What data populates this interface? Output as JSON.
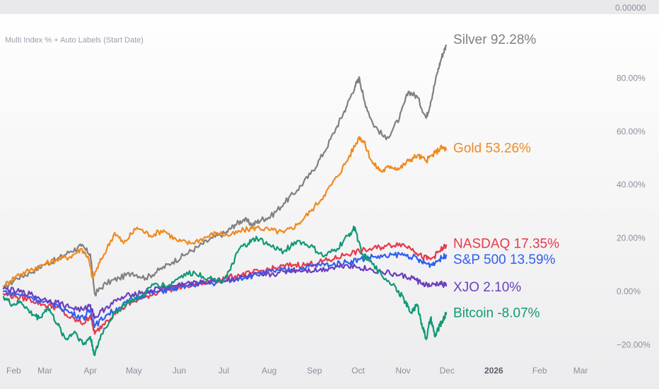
{
  "header": {
    "title": "Multi Index % + Auto Labels (Start Date)",
    "top_axis_label": "0.00000"
  },
  "chart_data": {
    "type": "line",
    "title": "Multi Index % + Auto Labels (Start Date)",
    "xlabel": "",
    "ylabel": "",
    "y_unit": "%",
    "ylim": [
      -26,
      104
    ],
    "y_ticks": [
      {
        "value": 80,
        "label": "80.00%"
      },
      {
        "value": 60,
        "label": "60.00%"
      },
      {
        "value": 40,
        "label": "40.00%"
      },
      {
        "value": 20,
        "label": "20.00%"
      },
      {
        "value": 0,
        "label": "0.00%"
      },
      {
        "value": -20,
        "label": "−20.00%"
      }
    ],
    "x_ticks": [
      {
        "value": 0.0,
        "label": "Feb",
        "bold": false
      },
      {
        "value": 0.93,
        "label": "Mar",
        "bold": false
      },
      {
        "value": 1.95,
        "label": "Apr",
        "bold": false
      },
      {
        "value": 2.93,
        "label": "May",
        "bold": false
      },
      {
        "value": 3.95,
        "label": "Jun",
        "bold": false
      },
      {
        "value": 4.95,
        "label": "Jul",
        "bold": false
      },
      {
        "value": 5.97,
        "label": "Aug",
        "bold": false
      },
      {
        "value": 6.99,
        "label": "Sep",
        "bold": false
      },
      {
        "value": 7.97,
        "label": "Oct",
        "bold": false
      },
      {
        "value": 8.98,
        "label": "Nov",
        "bold": false
      },
      {
        "value": 9.97,
        "label": "Dec",
        "bold": false
      },
      {
        "value": 11.02,
        "label": "2026",
        "bold": true
      },
      {
        "value": 12.05,
        "label": "Feb",
        "bold": false
      },
      {
        "value": 12.97,
        "label": "Mar",
        "bold": false
      }
    ],
    "x_range": [
      0,
      13.7
    ],
    "grid": false,
    "legend": "right-of-series-end",
    "series": [
      {
        "name": "Silver",
        "label": "Silver 92.28%",
        "color": "#808080",
        "x": [
          0,
          0.3,
          0.6,
          0.9,
          1.2,
          1.5,
          1.75,
          1.95,
          2.05,
          2.3,
          2.6,
          2.9,
          3.2,
          3.5,
          3.8,
          4.1,
          4.4,
          4.7,
          5.0,
          5.2,
          5.4,
          5.6,
          5.8,
          6.0,
          6.3,
          6.6,
          6.9,
          7.2,
          7.5,
          7.7,
          7.9,
          8.0,
          8.1,
          8.3,
          8.6,
          8.9,
          9.1,
          9.3,
          9.5,
          9.6,
          9.75,
          9.85,
          9.95
        ],
        "values": [
          1,
          5,
          7,
          10,
          12,
          15,
          17,
          14,
          -1,
          3,
          5,
          7,
          5,
          8,
          11,
          14,
          17,
          20,
          22,
          25,
          27,
          25,
          27,
          28,
          33,
          38,
          44,
          52,
          62,
          69,
          77,
          80,
          72,
          63,
          57,
          65,
          75,
          73,
          65,
          71,
          82,
          88,
          92.28
        ]
      },
      {
        "name": "Gold",
        "label": "Gold 53.26%",
        "color": "#f08a1e",
        "x": [
          0,
          0.3,
          0.6,
          0.9,
          1.2,
          1.5,
          1.75,
          1.9,
          2.0,
          2.2,
          2.5,
          2.7,
          3.0,
          3.3,
          3.6,
          3.9,
          4.2,
          4.5,
          4.8,
          5.1,
          5.4,
          5.7,
          6.0,
          6.3,
          6.6,
          6.9,
          7.2,
          7.5,
          7.75,
          8.0,
          8.1,
          8.3,
          8.5,
          8.7,
          8.9,
          9.1,
          9.3,
          9.5,
          9.7,
          9.85,
          9.95
        ],
        "values": [
          2,
          6,
          8,
          10,
          12,
          13,
          16,
          13,
          5,
          12,
          22,
          18,
          24,
          21,
          23,
          19,
          18,
          20,
          22,
          21,
          23,
          24,
          23,
          22,
          25,
          30,
          36,
          43,
          50,
          58,
          56,
          48,
          45,
          47,
          46,
          49,
          51,
          49,
          52,
          54,
          53.26
        ]
      },
      {
        "name": "NASDAQ",
        "label": "NASDAQ 17.35%",
        "color": "#e8394a",
        "x": [
          0,
          0.3,
          0.6,
          0.9,
          1.2,
          1.5,
          1.8,
          1.95,
          2.05,
          2.3,
          2.6,
          2.9,
          3.2,
          3.5,
          3.8,
          4.1,
          4.4,
          4.7,
          5.0,
          5.3,
          5.6,
          5.9,
          6.2,
          6.5,
          6.8,
          7.1,
          7.4,
          7.7,
          8.0,
          8.3,
          8.6,
          8.9,
          9.2,
          9.4,
          9.6,
          9.8,
          9.95
        ],
        "values": [
          -1,
          -2,
          -3,
          -5,
          -6,
          -10,
          -12,
          -9,
          -16,
          -11,
          -7,
          -4,
          -2,
          0,
          1,
          2,
          3,
          4,
          5,
          6,
          7,
          8,
          9,
          10,
          10,
          11,
          12,
          14,
          15,
          16,
          17,
          18,
          16,
          13,
          12,
          15,
          17.35
        ]
      },
      {
        "name": "S&P 500",
        "label": "S&P 500 13.59%",
        "color": "#2f5ff0",
        "x": [
          0,
          0.3,
          0.6,
          0.9,
          1.2,
          1.5,
          1.8,
          1.95,
          2.05,
          2.3,
          2.6,
          2.9,
          3.2,
          3.5,
          3.8,
          4.1,
          4.4,
          4.7,
          5.0,
          5.3,
          5.6,
          5.9,
          6.2,
          6.5,
          6.8,
          7.1,
          7.4,
          7.7,
          8.0,
          8.3,
          8.6,
          8.9,
          9.2,
          9.4,
          9.6,
          9.8,
          9.95
        ],
        "values": [
          0,
          -1,
          -2,
          -4,
          -5,
          -8,
          -10,
          -7,
          -13,
          -9,
          -6,
          -3,
          -1,
          0,
          1,
          2,
          3,
          3,
          4,
          5,
          6,
          7,
          8,
          8,
          9,
          10,
          10,
          11,
          12,
          13,
          13,
          14,
          13,
          11,
          10,
          12,
          13.59
        ]
      },
      {
        "name": "XJO",
        "label": "XJO 2.10%",
        "color": "#6b3fbf",
        "x": [
          0,
          0.3,
          0.6,
          0.9,
          1.2,
          1.5,
          1.8,
          1.95,
          2.05,
          2.3,
          2.6,
          2.9,
          3.2,
          3.5,
          3.8,
          4.1,
          4.4,
          4.7,
          5.0,
          5.3,
          5.6,
          5.9,
          6.2,
          6.5,
          6.8,
          7.1,
          7.4,
          7.7,
          8.0,
          8.3,
          8.6,
          8.9,
          9.2,
          9.4,
          9.6,
          9.8,
          9.95
        ],
        "values": [
          1,
          0,
          -1,
          -3,
          -4,
          -6,
          -7,
          -5,
          -10,
          -6,
          -3,
          -1,
          0,
          1,
          2,
          3,
          3,
          4,
          4,
          5,
          6,
          6,
          7,
          8,
          8,
          8,
          9,
          10,
          9,
          8,
          7,
          6,
          5,
          3,
          2,
          3,
          2.1
        ]
      },
      {
        "name": "Bitcoin",
        "label": "Bitcoin -8.07%",
        "color": "#119977",
        "x": [
          0,
          0.2,
          0.4,
          0.6,
          0.8,
          1.0,
          1.2,
          1.4,
          1.6,
          1.8,
          1.95,
          2.05,
          2.2,
          2.5,
          2.8,
          3.1,
          3.4,
          3.7,
          4.0,
          4.3,
          4.6,
          4.9,
          5.1,
          5.3,
          5.5,
          5.7,
          6.0,
          6.3,
          6.6,
          6.9,
          7.2,
          7.5,
          7.75,
          7.9,
          8.05,
          8.2,
          8.5,
          8.8,
          9.0,
          9.15,
          9.3,
          9.4,
          9.5,
          9.6,
          9.7,
          9.8,
          9.9,
          9.95
        ],
        "values": [
          -2,
          -5,
          -4,
          -8,
          -10,
          -6,
          -12,
          -18,
          -15,
          -20,
          -17,
          -24,
          -16,
          -8,
          -4,
          -2,
          3,
          2,
          6,
          7,
          5,
          4,
          8,
          16,
          18,
          20,
          17,
          15,
          19,
          17,
          13,
          16,
          21,
          24,
          14,
          12,
          6,
          2,
          -3,
          -8,
          -5,
          -12,
          -18,
          -10,
          -17,
          -13,
          -10,
          -8.07
        ]
      }
    ]
  }
}
